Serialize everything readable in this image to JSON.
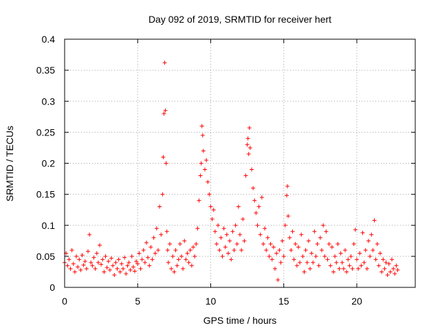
{
  "chart_data": {
    "type": "scatter",
    "title": "Day 092 of 2019, SRMTID for receiver hert",
    "xlabel": "GPS time / hours",
    "ylabel": "SRMTID / TECUs",
    "xlim": [
      0,
      24
    ],
    "ylim": [
      0,
      0.4
    ],
    "x_ticks": [
      0,
      5,
      10,
      15,
      20
    ],
    "x_tick_labels": [
      "0",
      "5",
      "10",
      "15",
      "20"
    ],
    "y_ticks": [
      0,
      0.05,
      0.1,
      0.15,
      0.2,
      0.25,
      0.3,
      0.35,
      0.4
    ],
    "y_tick_labels": [
      "0",
      "0.05",
      "0.1",
      "0.15",
      "0.2",
      "0.25",
      "0.3",
      "0.35",
      "0.4"
    ],
    "grid": true,
    "marker": "+",
    "series_color": "#ff0000",
    "series": [
      {
        "name": "SRMTID",
        "points": [
          [
            0.0,
            0.04
          ],
          [
            0.1,
            0.055
          ],
          [
            0.2,
            0.035
          ],
          [
            0.3,
            0.045
          ],
          [
            0.4,
            0.03
          ],
          [
            0.5,
            0.06
          ],
          [
            0.6,
            0.038
          ],
          [
            0.7,
            0.025
          ],
          [
            0.8,
            0.05
          ],
          [
            0.9,
            0.033
          ],
          [
            1.0,
            0.045
          ],
          [
            1.1,
            0.028
          ],
          [
            1.2,
            0.052
          ],
          [
            1.3,
            0.036
          ],
          [
            1.4,
            0.042
          ],
          [
            1.5,
            0.03
          ],
          [
            1.6,
            0.058
          ],
          [
            1.7,
            0.085
          ],
          [
            1.8,
            0.04
          ],
          [
            1.9,
            0.035
          ],
          [
            2.0,
            0.048
          ],
          [
            2.1,
            0.03
          ],
          [
            2.2,
            0.055
          ],
          [
            2.3,
            0.04
          ],
          [
            2.4,
            0.068
          ],
          [
            2.5,
            0.037
          ],
          [
            2.6,
            0.045
          ],
          [
            2.7,
            0.025
          ],
          [
            2.8,
            0.05
          ],
          [
            2.9,
            0.032
          ],
          [
            3.0,
            0.042
          ],
          [
            3.1,
            0.028
          ],
          [
            3.2,
            0.047
          ],
          [
            3.3,
            0.035
          ],
          [
            3.4,
            0.02
          ],
          [
            3.5,
            0.04
          ],
          [
            3.6,
            0.03
          ],
          [
            3.7,
            0.045
          ],
          [
            3.8,
            0.025
          ],
          [
            3.9,
            0.038
          ],
          [
            4.0,
            0.03
          ],
          [
            4.1,
            0.048
          ],
          [
            4.2,
            0.022
          ],
          [
            4.3,
            0.035
          ],
          [
            4.4,
            0.04
          ],
          [
            4.5,
            0.028
          ],
          [
            4.6,
            0.05
          ],
          [
            4.7,
            0.033
          ],
          [
            4.8,
            0.026
          ],
          [
            4.9,
            0.042
          ],
          [
            5.0,
            0.038
          ],
          [
            5.1,
            0.055
          ],
          [
            5.2,
            0.03
          ],
          [
            5.3,
            0.045
          ],
          [
            5.4,
            0.06
          ],
          [
            5.5,
            0.04
          ],
          [
            5.6,
            0.072
          ],
          [
            5.7,
            0.048
          ],
          [
            5.8,
            0.035
          ],
          [
            5.9,
            0.065
          ],
          [
            6.0,
            0.045
          ],
          [
            6.1,
            0.08
          ],
          [
            6.2,
            0.055
          ],
          [
            6.3,
            0.095
          ],
          [
            6.4,
            0.06
          ],
          [
            6.5,
            0.13
          ],
          [
            6.6,
            0.085
          ],
          [
            6.7,
            0.15
          ],
          [
            6.75,
            0.21
          ],
          [
            6.8,
            0.28
          ],
          [
            6.85,
            0.362
          ],
          [
            6.9,
            0.285
          ],
          [
            6.95,
            0.2
          ],
          [
            7.0,
            0.09
          ],
          [
            7.05,
            0.06
          ],
          [
            7.1,
            0.04
          ],
          [
            7.2,
            0.07
          ],
          [
            7.3,
            0.03
          ],
          [
            7.4,
            0.05
          ],
          [
            7.5,
            0.025
          ],
          [
            7.6,
            0.06
          ],
          [
            7.7,
            0.035
          ],
          [
            7.8,
            0.045
          ],
          [
            7.9,
            0.07
          ],
          [
            8.0,
            0.05
          ],
          [
            8.1,
            0.03
          ],
          [
            8.2,
            0.075
          ],
          [
            8.3,
            0.045
          ],
          [
            8.4,
            0.055
          ],
          [
            8.5,
            0.04
          ],
          [
            8.6,
            0.06
          ],
          [
            8.7,
            0.035
          ],
          [
            8.8,
            0.065
          ],
          [
            8.9,
            0.05
          ],
          [
            9.0,
            0.07
          ],
          [
            9.1,
            0.095
          ],
          [
            9.2,
            0.14
          ],
          [
            9.3,
            0.18
          ],
          [
            9.35,
            0.2
          ],
          [
            9.4,
            0.26
          ],
          [
            9.45,
            0.245
          ],
          [
            9.5,
            0.22
          ],
          [
            9.6,
            0.19
          ],
          [
            9.7,
            0.205
          ],
          [
            9.8,
            0.17
          ],
          [
            9.9,
            0.15
          ],
          [
            10.0,
            0.13
          ],
          [
            10.1,
            0.11
          ],
          [
            10.2,
            0.125
          ],
          [
            10.3,
            0.09
          ],
          [
            10.4,
            0.07
          ],
          [
            10.5,
            0.1
          ],
          [
            10.6,
            0.06
          ],
          [
            10.7,
            0.08
          ],
          [
            10.8,
            0.05
          ],
          [
            10.9,
            0.095
          ],
          [
            11.0,
            0.065
          ],
          [
            11.1,
            0.085
          ],
          [
            11.2,
            0.055
          ],
          [
            11.3,
            0.075
          ],
          [
            11.4,
            0.045
          ],
          [
            11.5,
            0.09
          ],
          [
            11.6,
            0.06
          ],
          [
            11.7,
            0.1
          ],
          [
            11.8,
            0.07
          ],
          [
            11.9,
            0.13
          ],
          [
            12.0,
            0.085
          ],
          [
            12.1,
            0.06
          ],
          [
            12.2,
            0.11
          ],
          [
            12.3,
            0.075
          ],
          [
            12.4,
            0.18
          ],
          [
            12.5,
            0.23
          ],
          [
            12.55,
            0.24
          ],
          [
            12.6,
            0.215
          ],
          [
            12.65,
            0.257
          ],
          [
            12.7,
            0.225
          ],
          [
            12.8,
            0.19
          ],
          [
            12.9,
            0.16
          ],
          [
            13.0,
            0.14
          ],
          [
            13.1,
            0.12
          ],
          [
            13.2,
            0.1
          ],
          [
            13.3,
            0.13
          ],
          [
            13.4,
            0.085
          ],
          [
            13.5,
            0.145
          ],
          [
            13.6,
            0.07
          ],
          [
            13.7,
            0.095
          ],
          [
            13.8,
            0.06
          ],
          [
            13.9,
            0.08
          ],
          [
            14.0,
            0.05
          ],
          [
            14.1,
            0.07
          ],
          [
            14.2,
            0.045
          ],
          [
            14.3,
            0.065
          ],
          [
            14.4,
            0.03
          ],
          [
            14.5,
            0.055
          ],
          [
            14.6,
            0.012
          ],
          [
            14.7,
            0.06
          ],
          [
            14.8,
            0.04
          ],
          [
            14.9,
            0.075
          ],
          [
            15.0,
            0.05
          ],
          [
            15.1,
            0.1
          ],
          [
            15.2,
            0.148
          ],
          [
            15.25,
            0.163
          ],
          [
            15.3,
            0.115
          ],
          [
            15.4,
            0.08
          ],
          [
            15.5,
            0.06
          ],
          [
            15.6,
            0.09
          ],
          [
            15.7,
            0.045
          ],
          [
            15.8,
            0.07
          ],
          [
            15.9,
            0.035
          ],
          [
            16.0,
            0.065
          ],
          [
            16.1,
            0.04
          ],
          [
            16.2,
            0.085
          ],
          [
            16.3,
            0.05
          ],
          [
            16.4,
            0.025
          ],
          [
            16.5,
            0.06
          ],
          [
            16.6,
            0.04
          ],
          [
            16.7,
            0.075
          ],
          [
            16.8,
            0.03
          ],
          [
            16.9,
            0.055
          ],
          [
            17.0,
            0.04
          ],
          [
            17.1,
            0.09
          ],
          [
            17.2,
            0.05
          ],
          [
            17.3,
            0.07
          ],
          [
            17.4,
            0.035
          ],
          [
            17.5,
            0.08
          ],
          [
            17.6,
            0.06
          ],
          [
            17.7,
            0.1
          ],
          [
            17.8,
            0.05
          ],
          [
            17.9,
            0.09
          ],
          [
            18.0,
            0.045
          ],
          [
            18.1,
            0.07
          ],
          [
            18.2,
            0.035
          ],
          [
            18.3,
            0.065
          ],
          [
            18.4,
            0.025
          ],
          [
            18.5,
            0.05
          ],
          [
            18.6,
            0.04
          ],
          [
            18.7,
            0.07
          ],
          [
            18.8,
            0.03
          ],
          [
            18.9,
            0.055
          ],
          [
            19.0,
            0.04
          ],
          [
            19.1,
            0.03
          ],
          [
            19.2,
            0.06
          ],
          [
            19.3,
            0.025
          ],
          [
            19.4,
            0.045
          ],
          [
            19.5,
            0.035
          ],
          [
            19.6,
            0.05
          ],
          [
            19.7,
            0.03
          ],
          [
            19.8,
            0.07
          ],
          [
            19.9,
            0.093
          ],
          [
            20.0,
            0.045
          ],
          [
            20.1,
            0.03
          ],
          [
            20.2,
            0.055
          ],
          [
            20.3,
            0.035
          ],
          [
            20.4,
            0.088
          ],
          [
            20.5,
            0.04
          ],
          [
            20.6,
            0.06
          ],
          [
            20.7,
            0.03
          ],
          [
            20.8,
            0.075
          ],
          [
            20.9,
            0.05
          ],
          [
            21.0,
            0.085
          ],
          [
            21.1,
            0.06
          ],
          [
            21.2,
            0.108
          ],
          [
            21.3,
            0.045
          ],
          [
            21.4,
            0.07
          ],
          [
            21.5,
            0.035
          ],
          [
            21.6,
            0.055
          ],
          [
            21.7,
            0.025
          ],
          [
            21.8,
            0.045
          ],
          [
            21.9,
            0.03
          ],
          [
            22.0,
            0.04
          ],
          [
            22.1,
            0.02
          ],
          [
            22.2,
            0.038
          ],
          [
            22.3,
            0.025
          ],
          [
            22.4,
            0.045
          ],
          [
            22.5,
            0.03
          ],
          [
            22.6,
            0.022
          ],
          [
            22.7,
            0.035
          ],
          [
            22.8,
            0.028
          ]
        ]
      }
    ]
  }
}
